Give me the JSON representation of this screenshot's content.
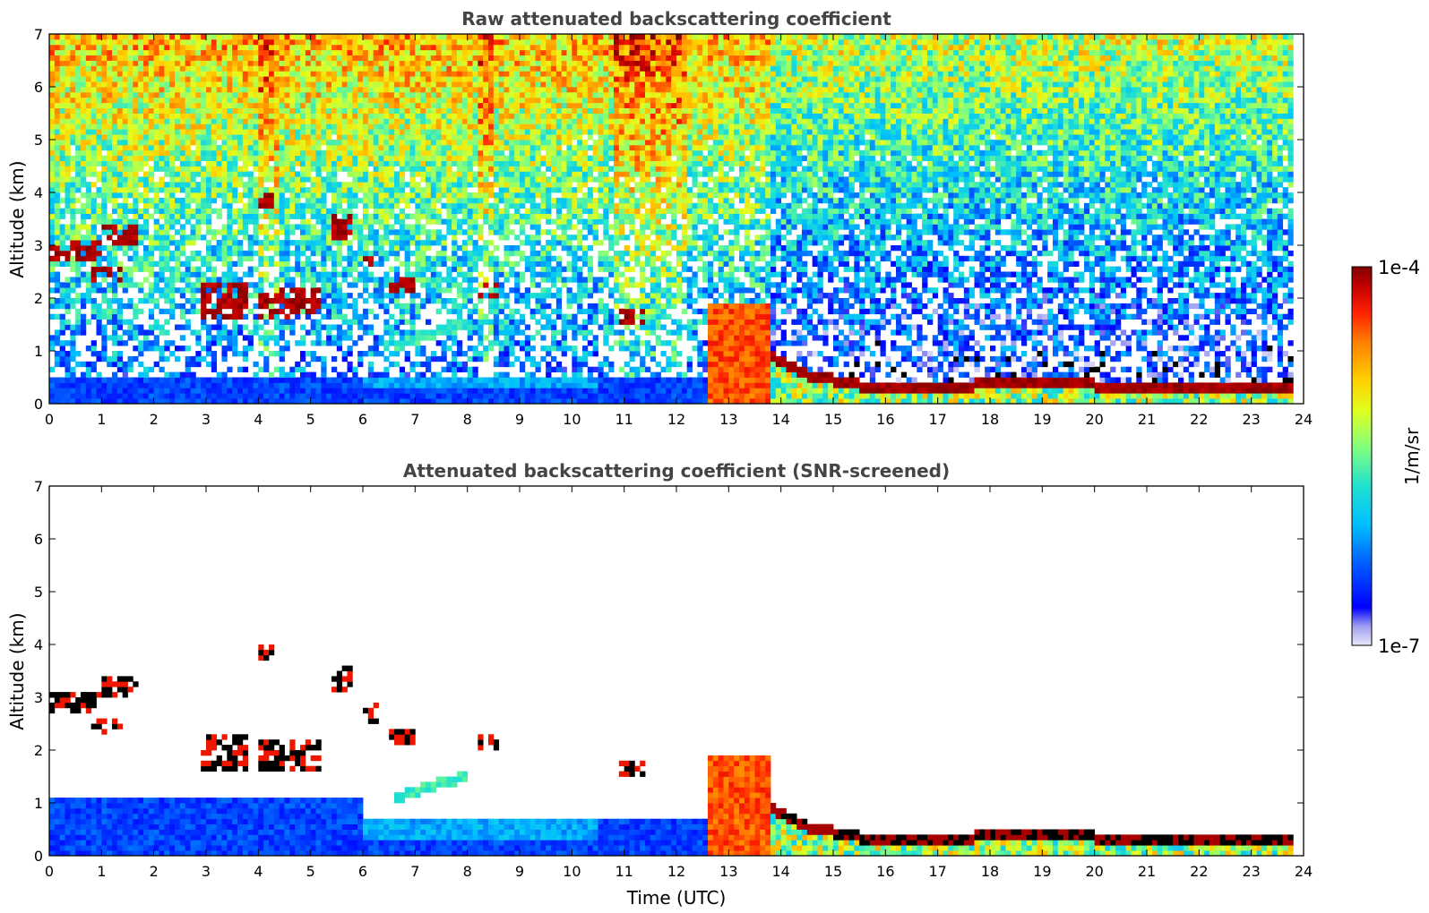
{
  "chart_data": [
    {
      "type": "heatmap",
      "title": "Raw attenuated backscattering coefficient",
      "xlabel": "",
      "ylabel": "Altitude (km)",
      "xlim": [
        0,
        24
      ],
      "ylim": [
        0,
        7
      ],
      "x_ticks": [
        0,
        1,
        2,
        3,
        4,
        5,
        6,
        7,
        8,
        9,
        10,
        11,
        12,
        13,
        14,
        15,
        16,
        17,
        18,
        19,
        20,
        21,
        22,
        23,
        24
      ],
      "y_ticks": [
        0,
        1,
        2,
        3,
        4,
        5,
        6,
        7
      ],
      "screened": false,
      "features": [
        {
          "kind": "boundary_layer",
          "x": [
            0,
            12.6
          ],
          "top_km": 0.55
        },
        {
          "kind": "dense_cloud",
          "x": [
            12.6,
            13.8
          ],
          "y": [
            0,
            1.9
          ]
        },
        {
          "kind": "low_cloud_line",
          "x": [
            13.8,
            23.8
          ],
          "altitude_km": [
            0.9,
            0.55,
            0.35,
            0.3,
            0.4,
            0.3,
            0.3,
            0.25
          ]
        },
        {
          "kind": "cloud_layer",
          "x": [
            0,
            1.0
          ],
          "y": [
            2.7,
            3.1
          ]
        },
        {
          "kind": "cloud_layer",
          "x": [
            1.0,
            1.7
          ],
          "y": [
            3.0,
            3.4
          ]
        },
        {
          "kind": "cloud_layer",
          "x": [
            0.8,
            1.4
          ],
          "y": [
            2.3,
            2.6
          ]
        },
        {
          "kind": "cloud_layer",
          "x": [
            2.9,
            3.8
          ],
          "y": [
            1.6,
            2.3
          ]
        },
        {
          "kind": "cloud_layer",
          "x": [
            4.0,
            4.3
          ],
          "y": [
            3.75,
            3.95
          ]
        },
        {
          "kind": "cloud_layer",
          "x": [
            5.4,
            5.8
          ],
          "y": [
            3.1,
            3.6
          ]
        },
        {
          "kind": "cloud_layer",
          "x": [
            6.5,
            7.0
          ],
          "y": [
            2.1,
            2.4
          ]
        },
        {
          "kind": "cloud_layer",
          "x": [
            8.2,
            8.6
          ],
          "y": [
            2.05,
            2.25
          ]
        },
        {
          "kind": "cloud_layer",
          "x": [
            10.9,
            11.4
          ],
          "y": [
            1.5,
            1.8
          ]
        },
        {
          "kind": "aerosol_plume",
          "x": [
            6.6,
            8.0
          ],
          "y": [
            1.0,
            1.5
          ]
        }
      ]
    },
    {
      "type": "heatmap",
      "title": "Attenuated backscattering coefficient (SNR-screened)",
      "xlabel": "Time (UTC)",
      "ylabel": "Altitude (km)",
      "xlim": [
        0,
        24
      ],
      "ylim": [
        0,
        7
      ],
      "x_ticks": [
        0,
        1,
        2,
        3,
        4,
        5,
        6,
        7,
        8,
        9,
        10,
        11,
        12,
        13,
        14,
        15,
        16,
        17,
        18,
        19,
        20,
        21,
        22,
        23,
        24
      ],
      "y_ticks": [
        0,
        1,
        2,
        3,
        4,
        5,
        6,
        7
      ],
      "screened": true
    }
  ],
  "colorbar": {
    "label": "1/m/sr",
    "max_label": "1e-4",
    "min_label": "1e-7",
    "scale": "log",
    "range": [
      1e-07,
      0.0001
    ],
    "colormap": [
      "#e8e8f8",
      "#a0a0f0",
      "#0000ff",
      "#0060ff",
      "#00c0ff",
      "#20e0d0",
      "#80ff80",
      "#e0ff20",
      "#ffd000",
      "#ff8000",
      "#ff2000",
      "#c00000",
      "#800000"
    ]
  }
}
